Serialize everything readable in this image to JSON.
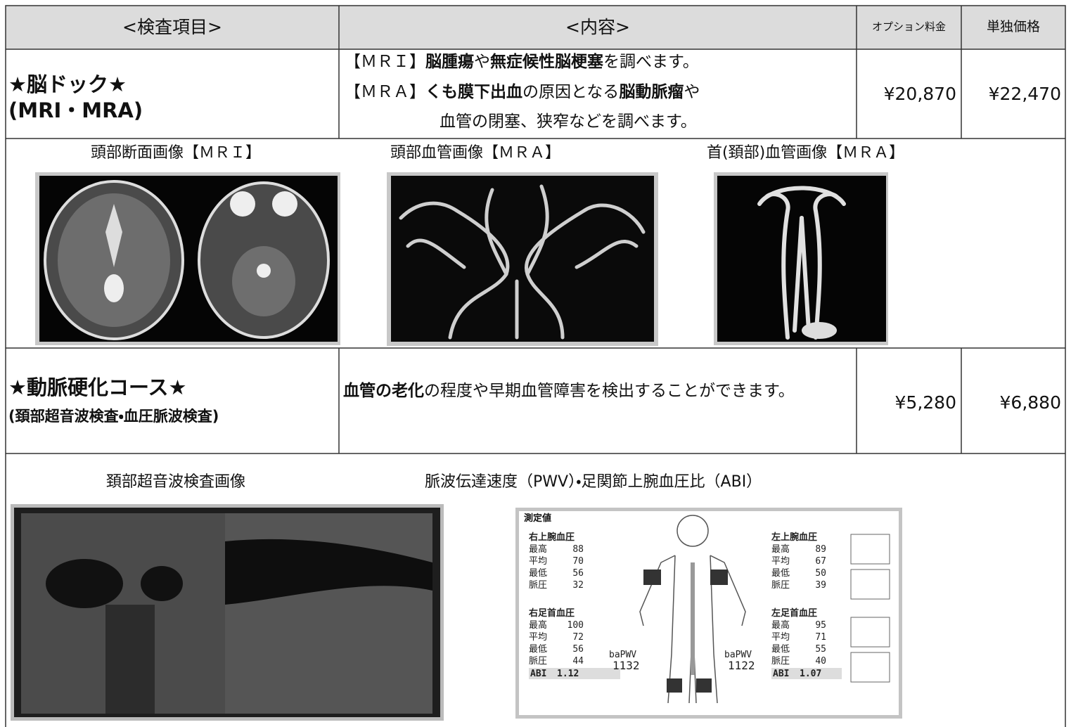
{
  "table": {
    "header": [
      "<検査項目>",
      "<内容>",
      "オプション料金",
      "単独価格"
    ],
    "rows": [
      {
        "name": [
          "★脳ドック★",
          "(MRI・MRA)"
        ],
        "content": [
          [
            {
              "text": "【ＭＲＩ】",
              "bold": false
            },
            {
              "text": "脳腫瘍",
              "bold": true
            },
            {
              "text": "や",
              "bold": false
            },
            {
              "text": "無症候性脳梗塞",
              "bold": true
            },
            {
              "text": "を調べます。",
              "bold": false
            }
          ],
          [
            {
              "text": "【ＭＲＡ】",
              "bold": false
            },
            {
              "text": "くも膜下出血",
              "bold": true
            },
            {
              "text": "の原因となる",
              "bold": false
            },
            {
              "text": "脳動脈瘤",
              "bold": true
            },
            {
              "text": "や",
              "bold": false
            }
          ],
          [
            {
              "text": "血管の閉塞、狭窄などを調べます。",
              "bold": false
            }
          ]
        ],
        "option_price": "¥20,870",
        "single_price": "¥22,470",
        "image_captions": [
          "頭部断面画像【ＭＲＩ】",
          "頭部血管画像【ＭＲＡ】",
          "首(頚部)血管画像【ＭＲＡ】"
        ]
      },
      {
        "name": [
          "★動脈硬化コース★",
          "(頚部超音波検査・血圧脈波検査)"
        ],
        "content": [
          [
            {
              "text": "血管の老化",
              "bold": true
            },
            {
              "text": "の程度や早期血管障害を検出することができます。",
              "bold": false
            }
          ]
        ],
        "option_price": "¥5,280",
        "single_price": "¥6,880",
        "image_captions": [
          "頚部超音波検査画像",
          "脈波伝達速度（PWV）・足関節上腕血圧比（ABI）"
        ]
      }
    ]
  },
  "abi_report": {
    "title": "測定値",
    "blocks": [
      {
        "title": "右上腕血圧",
        "items": [
          {
            "label": "最高",
            "value": 88
          },
          {
            "label": "平均",
            "value": 70
          },
          {
            "label": "最低",
            "value": 56
          },
          {
            "label": "脈圧",
            "value": 32
          }
        ]
      },
      {
        "title": "左上腕血圧",
        "items": [
          {
            "label": "最高",
            "value": 89
          },
          {
            "label": "平均",
            "value": 67
          },
          {
            "label": "最低",
            "value": 50
          },
          {
            "label": "脈圧",
            "value": 39
          }
        ]
      },
      {
        "title": "右足首血圧",
        "items": [
          {
            "label": "最高",
            "value": 100
          },
          {
            "label": "平均",
            "value": 72
          },
          {
            "label": "最低",
            "value": 56
          },
          {
            "label": "脈圧",
            "value": 44
          }
        ]
      },
      {
        "title": "左足首血圧",
        "items": [
          {
            "label": "最高",
            "value": 95
          },
          {
            "label": "平均",
            "value": 71
          },
          {
            "label": "最低",
            "value": 55
          },
          {
            "label": "脈圧",
            "value": 40
          }
        ]
      }
    ],
    "pwv": [
      {
        "label": "baPWV",
        "value": 1132
      },
      {
        "label": "baPWV",
        "value": 1122
      }
    ],
    "abi": [
      {
        "label": "ABI",
        "value": 1.12
      },
      {
        "label": "ABI",
        "value": 1.07
      }
    ]
  }
}
